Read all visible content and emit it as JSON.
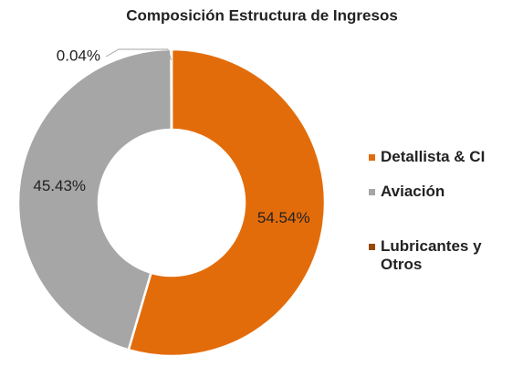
{
  "chart_data": {
    "type": "pie",
    "title": "Composición Estructura de Ingresos",
    "categories": [
      "Detallista & CI",
      "Aviación",
      "Lubricantes y Otros"
    ],
    "values": [
      54.54,
      45.43,
      0.04
    ],
    "value_labels": [
      "54.54%",
      "45.43%",
      "0.04%"
    ],
    "colors": [
      "#E36C0A",
      "#A6A6A6",
      "#974806"
    ],
    "donut": true,
    "legend": "right"
  }
}
